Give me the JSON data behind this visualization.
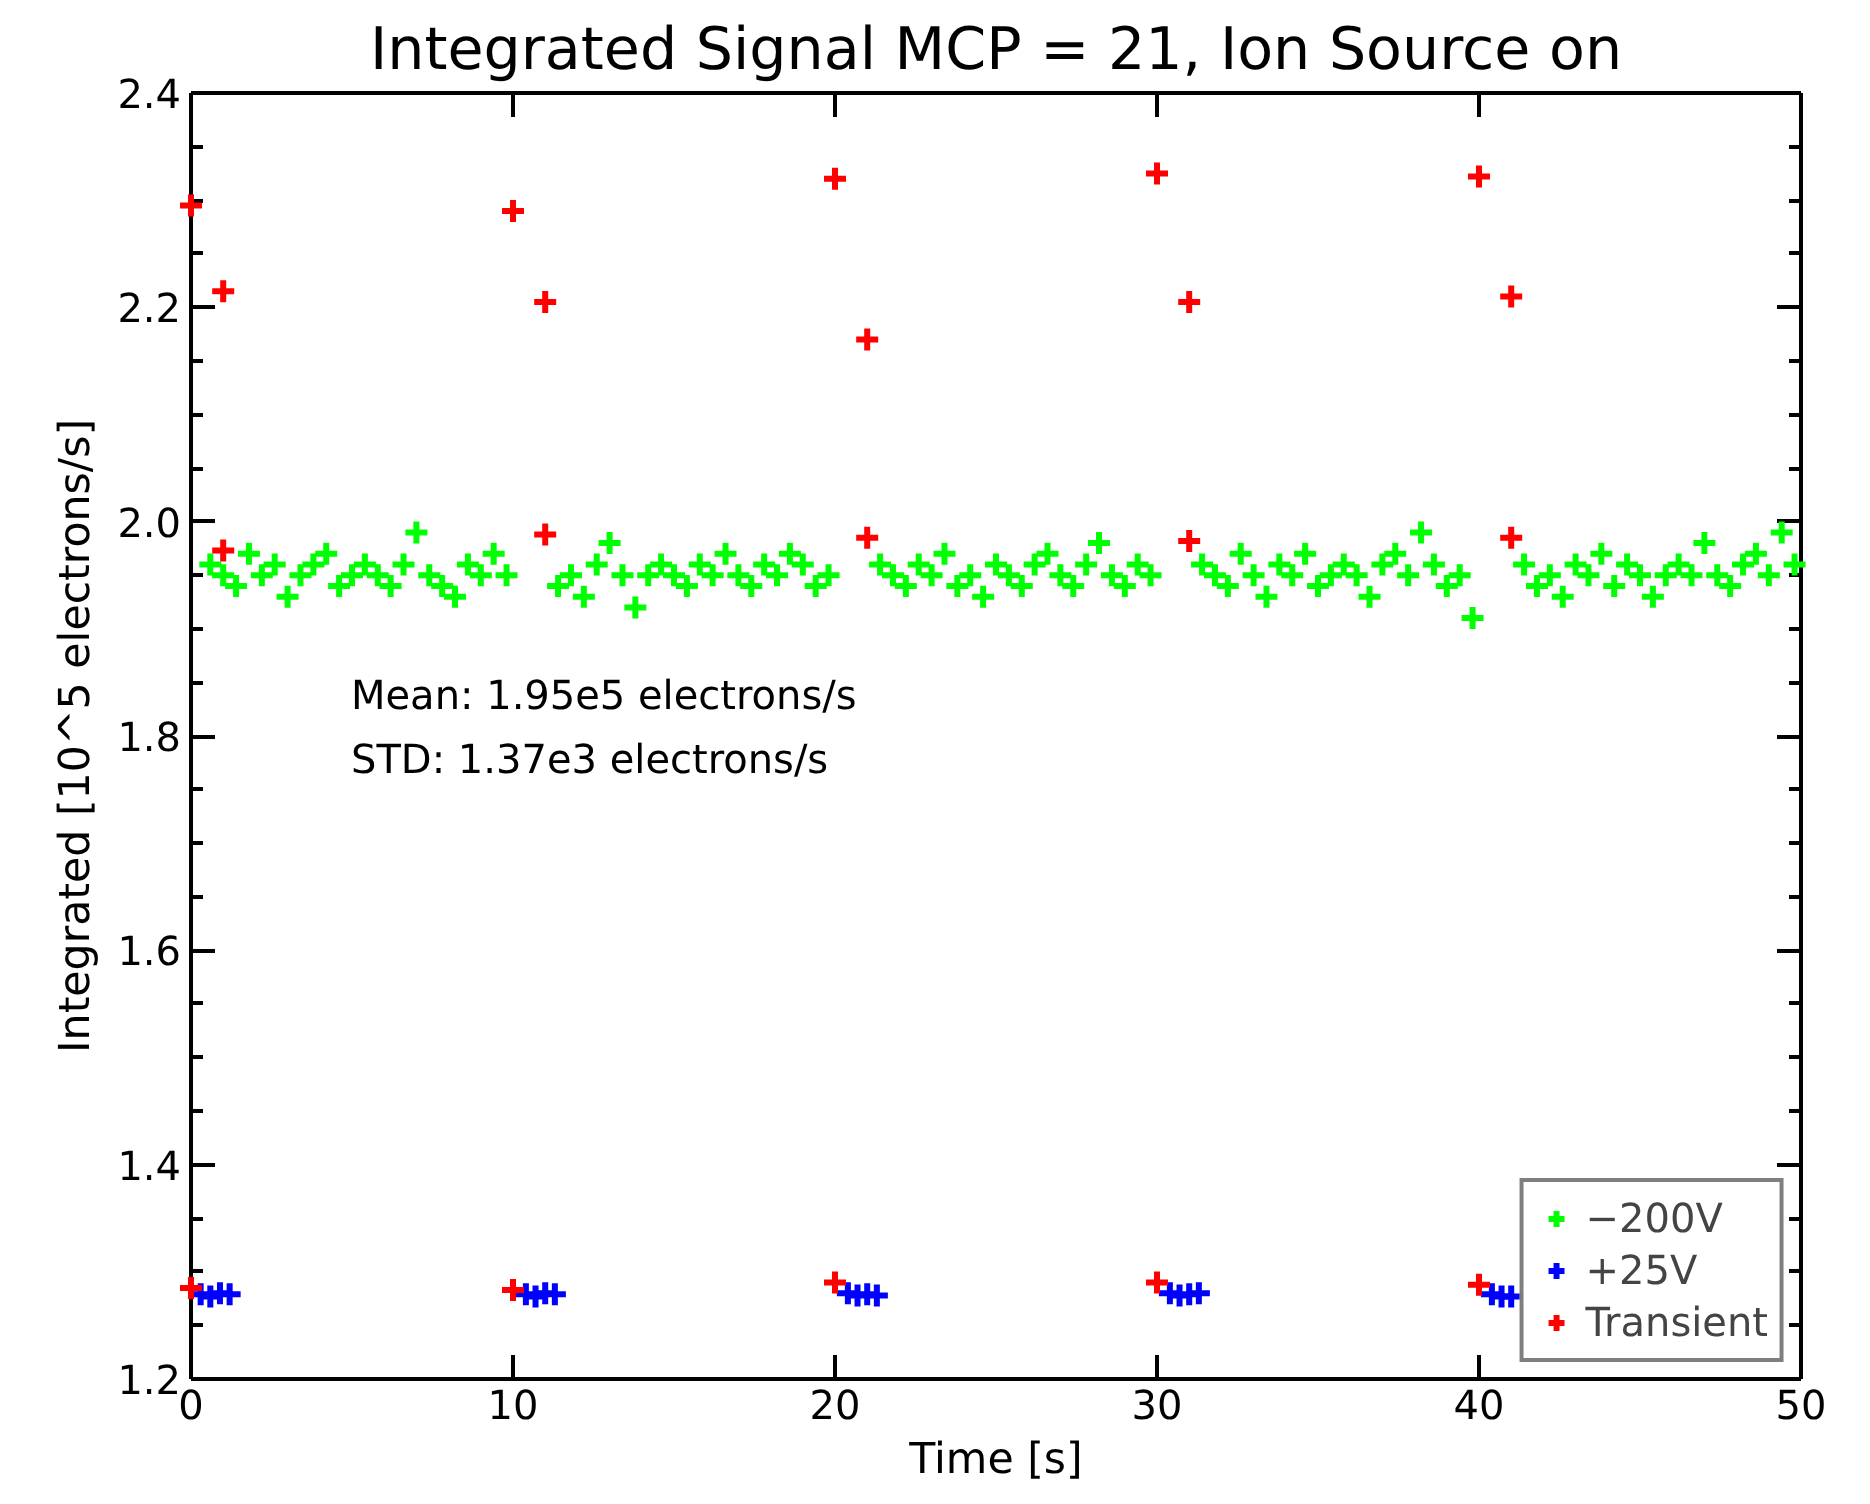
{
  "chart_data": {
    "type": "scatter",
    "title": "Integrated Signal MCP = 21, Ion Source on",
    "xlabel": "Time [s]",
    "ylabel": "Integrated [10^5 electrons/s]",
    "xlim": [
      0,
      50
    ],
    "ylim": [
      1.2,
      2.4
    ],
    "xticks": [
      0,
      10,
      20,
      30,
      40,
      50
    ],
    "yticks": [
      1.2,
      1.4,
      1.6,
      1.8,
      {
        "value": 2,
        "label": "2.0"
      },
      2.2,
      2.4
    ],
    "grid": false,
    "legend": "bottom right",
    "marker": "cross",
    "annotations": [
      "Mean:  1.95e5 electrons/s",
      "STD:    1.37e3 electrons/s"
    ],
    "series": [
      {
        "name": "−200V",
        "color": "#00ff00",
        "x": [
          0.6,
          1.0,
          1.4,
          1.8,
          2.2,
          2.6,
          3.0,
          3.4,
          3.8,
          4.2,
          4.6,
          5.0,
          5.4,
          5.8,
          6.2,
          6.6,
          7.0,
          7.4,
          7.8,
          8.2,
          8.6,
          9.0,
          9.4,
          9.8,
          11.4,
          11.8,
          12.2,
          12.6,
          13.0,
          13.4,
          13.8,
          14.2,
          14.6,
          15.0,
          15.4,
          15.8,
          16.2,
          16.6,
          17.0,
          17.4,
          17.8,
          18.2,
          18.6,
          19.0,
          19.4,
          19.8,
          21.4,
          21.8,
          22.2,
          22.6,
          23.0,
          23.4,
          23.8,
          24.2,
          24.6,
          25.0,
          25.4,
          25.8,
          26.2,
          26.6,
          27.0,
          27.4,
          27.8,
          28.2,
          28.6,
          29.0,
          29.4,
          29.8,
          31.4,
          31.8,
          32.2,
          32.6,
          33.0,
          33.4,
          33.8,
          34.2,
          34.6,
          35.0,
          35.4,
          35.8,
          36.2,
          36.6,
          37.0,
          37.4,
          37.8,
          38.2,
          38.6,
          39.0,
          39.4,
          39.8,
          41.4,
          41.8,
          42.2,
          42.6,
          43.0,
          43.4,
          43.8,
          44.2,
          44.6,
          45.0,
          45.4,
          45.8,
          46.2,
          46.6,
          47.0,
          47.4,
          47.8,
          48.2,
          48.6,
          49.0,
          49.4,
          49.8
        ],
        "values": [
          1.96,
          1.95,
          1.94,
          1.97,
          1.95,
          1.96,
          1.93,
          1.95,
          1.96,
          1.97,
          1.94,
          1.95,
          1.96,
          1.95,
          1.94,
          1.96,
          1.99,
          1.95,
          1.94,
          1.93,
          1.96,
          1.95,
          1.97,
          1.95,
          1.94,
          1.95,
          1.93,
          1.96,
          1.98,
          1.95,
          1.92,
          1.95,
          1.96,
          1.95,
          1.94,
          1.96,
          1.95,
          1.97,
          1.95,
          1.94,
          1.96,
          1.95,
          1.97,
          1.96,
          1.94,
          1.95,
          1.96,
          1.95,
          1.94,
          1.96,
          1.95,
          1.97,
          1.94,
          1.95,
          1.93,
          1.96,
          1.95,
          1.94,
          1.96,
          1.97,
          1.95,
          1.94,
          1.96,
          1.98,
          1.95,
          1.94,
          1.96,
          1.95,
          1.96,
          1.95,
          1.94,
          1.97,
          1.95,
          1.93,
          1.96,
          1.95,
          1.97,
          1.94,
          1.95,
          1.96,
          1.95,
          1.93,
          1.96,
          1.97,
          1.95,
          1.99,
          1.96,
          1.94,
          1.95,
          1.91,
          1.96,
          1.94,
          1.95,
          1.93,
          1.96,
          1.95,
          1.97,
          1.94,
          1.96,
          1.95,
          1.93,
          1.95,
          1.96,
          1.95,
          1.98,
          1.95,
          1.94,
          1.96,
          1.97,
          1.95,
          1.99,
          1.96
        ]
      },
      {
        "name": "+25V",
        "color": "#0000ff",
        "x": [
          0.3,
          0.6,
          0.9,
          1.2,
          10.4,
          10.7,
          11.0,
          11.3,
          20.4,
          20.7,
          21.0,
          21.3,
          30.4,
          30.7,
          31.0,
          31.3,
          40.4,
          40.7,
          41.0
        ],
        "values": [
          1.279,
          1.277,
          1.28,
          1.279,
          1.279,
          1.277,
          1.28,
          1.279,
          1.28,
          1.278,
          1.279,
          1.278,
          1.28,
          1.278,
          1.279,
          1.28,
          1.279,
          1.277,
          1.277
        ]
      },
      {
        "name": "Transient",
        "color": "#ff0000",
        "x": [
          0,
          1,
          10,
          11,
          20,
          21,
          30,
          31,
          40,
          41,
          1,
          11,
          21,
          31,
          41,
          0,
          10,
          20,
          30,
          40
        ],
        "values": [
          2.295,
          2.215,
          2.29,
          2.205,
          2.32,
          2.17,
          2.325,
          2.205,
          2.322,
          2.21,
          1.973,
          1.988,
          1.985,
          1.982,
          1.985,
          1.285,
          1.283,
          1.29,
          1.29,
          1.288
        ]
      }
    ]
  }
}
